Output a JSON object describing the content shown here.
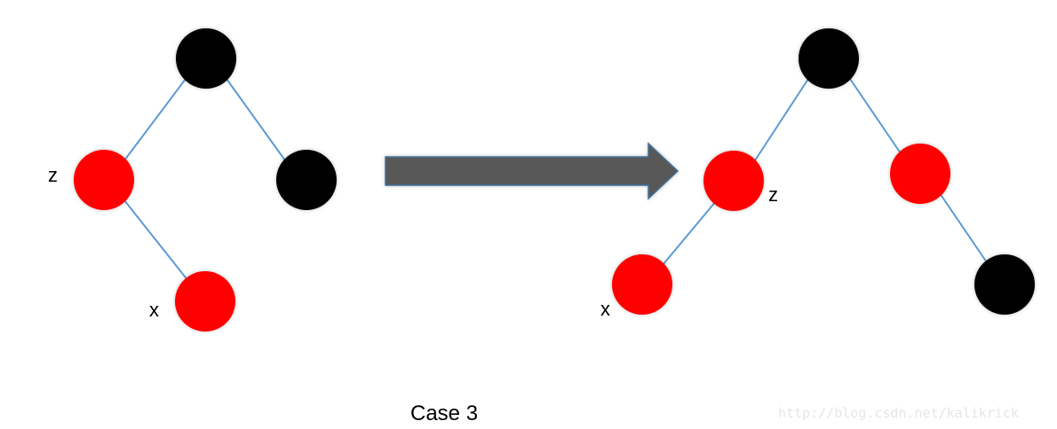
{
  "colors": {
    "red_node": "#ff0000",
    "black_node": "#000000",
    "edge": "#5b9bd5",
    "arrow_fill": "#595959",
    "arrow_stroke": "#41719c"
  },
  "before_tree": {
    "labels": {
      "z": "z",
      "x": "x"
    }
  },
  "after_tree": {
    "labels": {
      "z": "z",
      "x": "x"
    }
  },
  "caption": "Case 3",
  "watermark": "http://blog.csdn.net/kalikrick"
}
